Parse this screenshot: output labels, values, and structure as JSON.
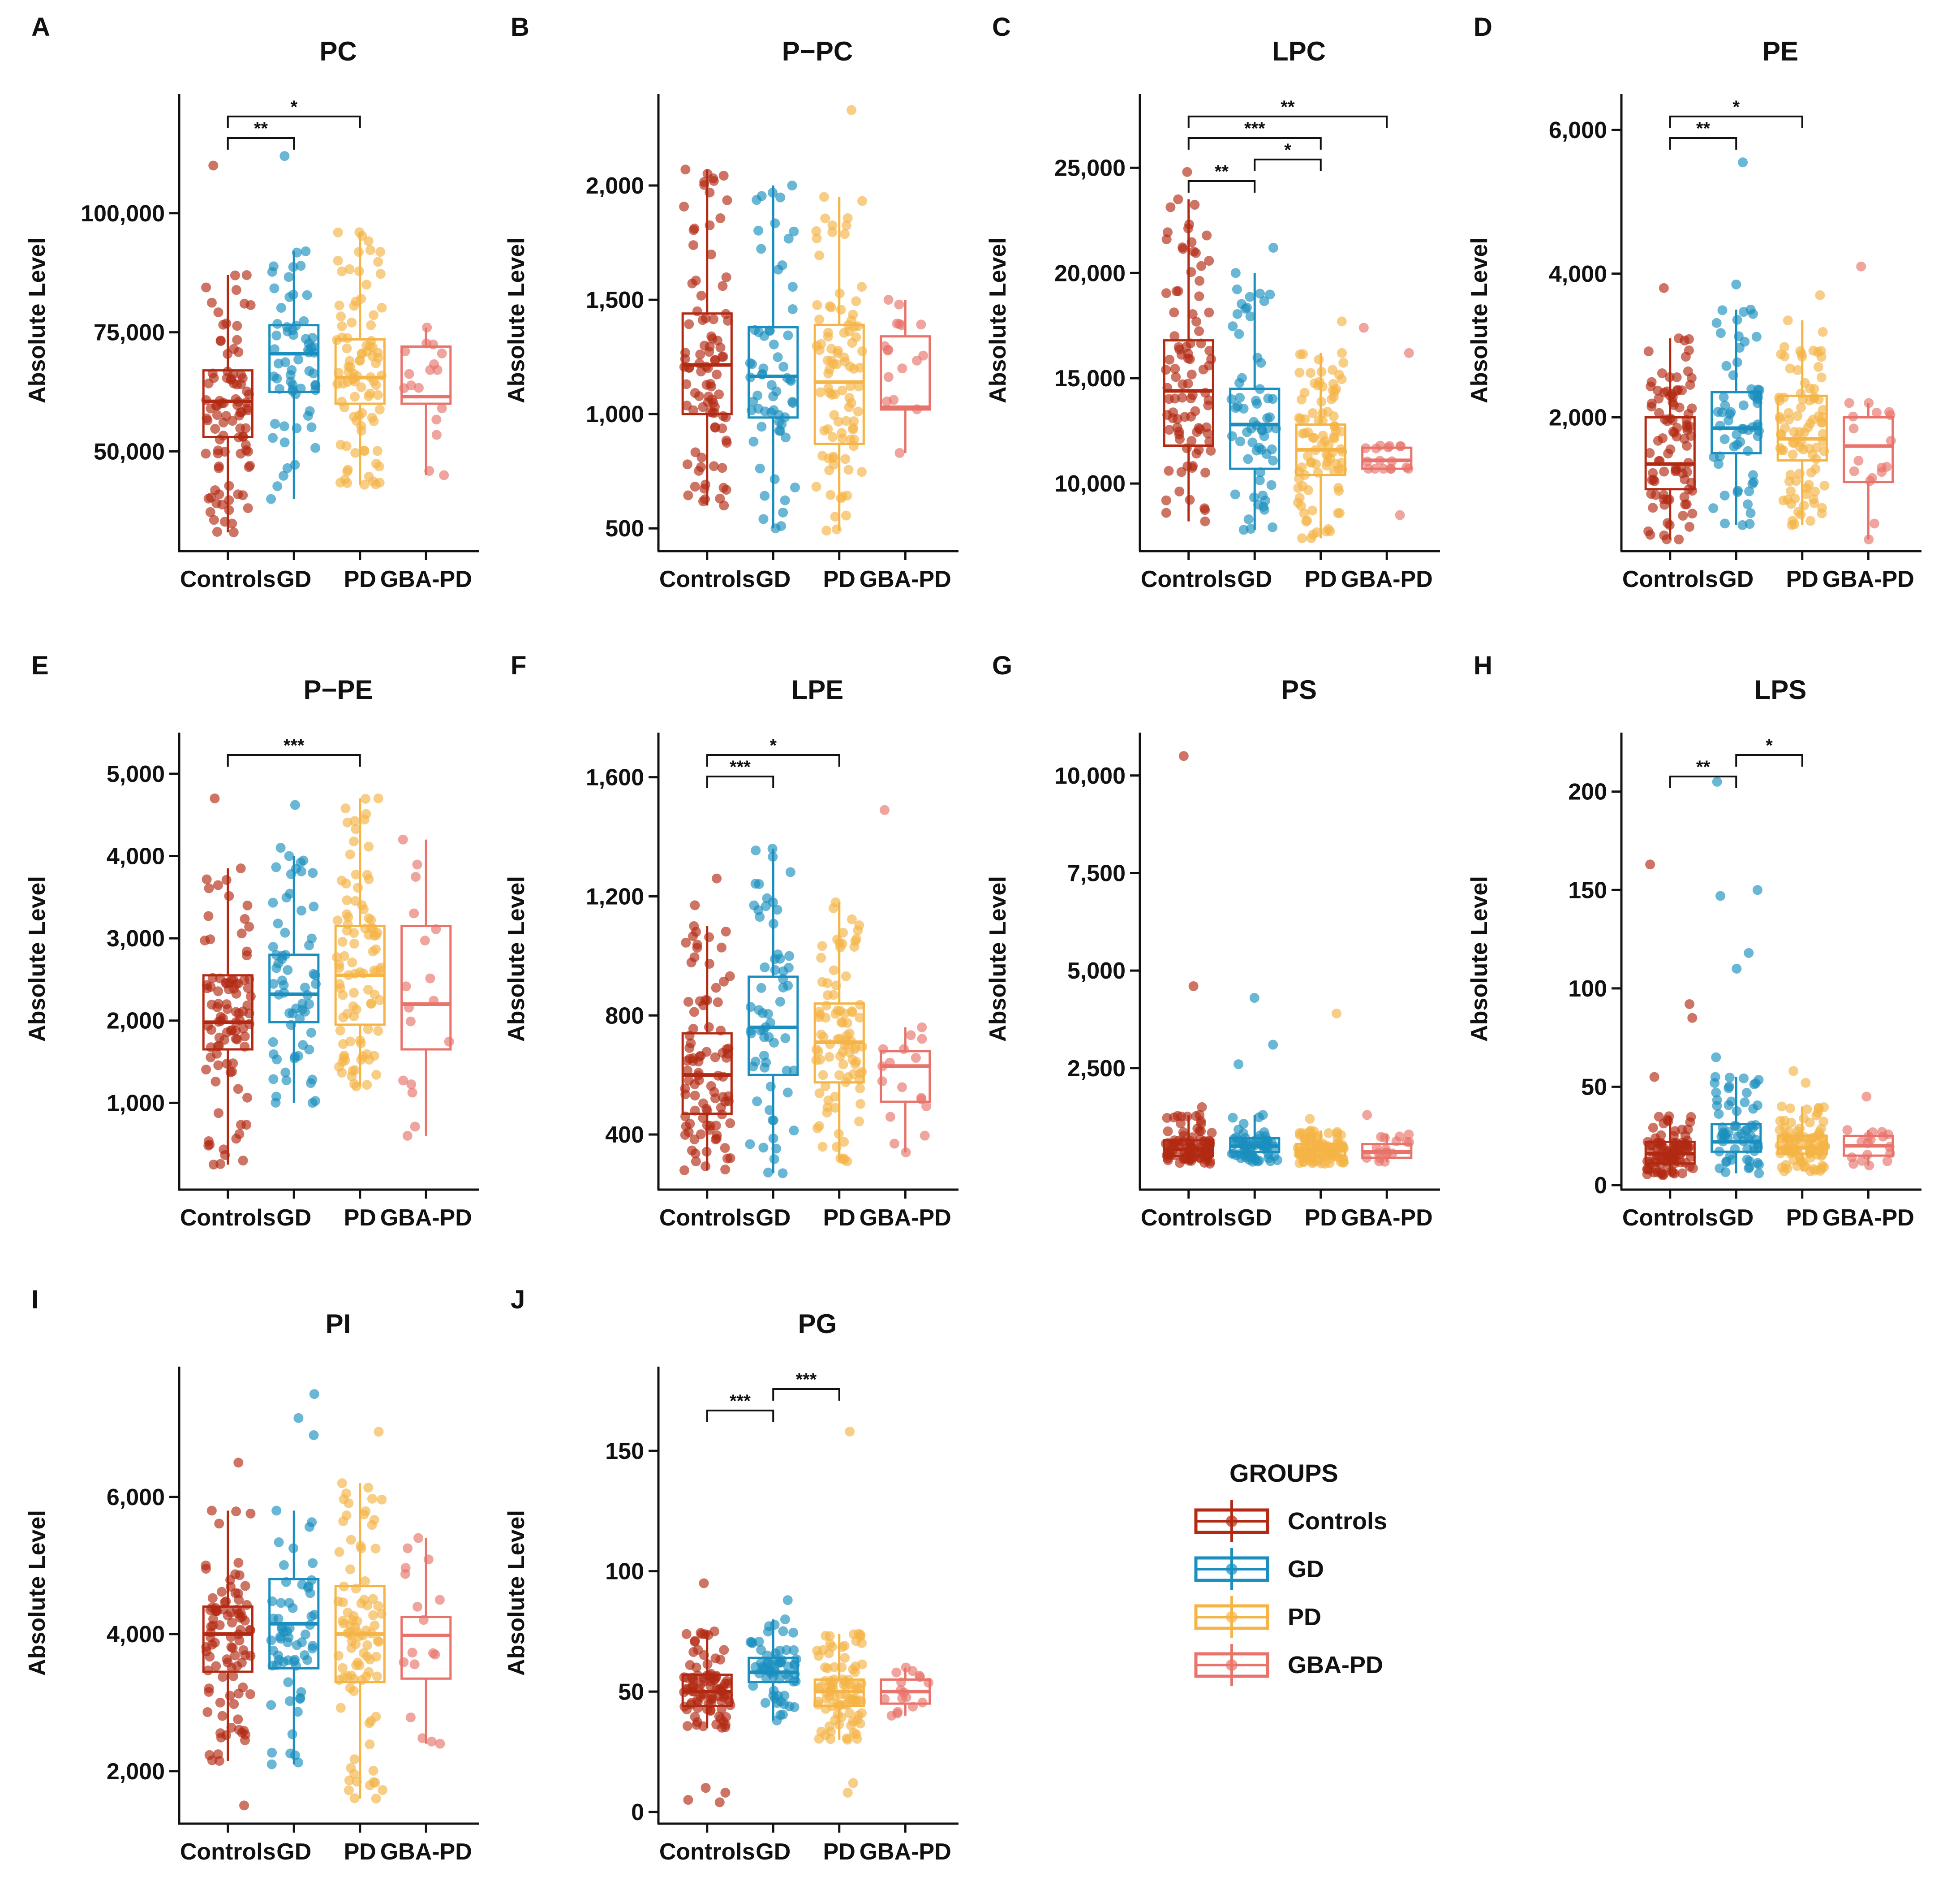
{
  "figure": {
    "legend": {
      "title": "GROUPS",
      "items": [
        {
          "label": "Controls",
          "color": "#b22a13"
        },
        {
          "label": "GD",
          "color": "#1a8fbf"
        },
        {
          "label": "PD",
          "color": "#f5b445"
        },
        {
          "label": "GBA-PD",
          "color": "#e8736a"
        }
      ]
    }
  },
  "chart_data": [
    {
      "panel": "A",
      "title": "PC",
      "type": "box",
      "ylabel": "Absolute Level",
      "categories": [
        "Controls",
        "GD",
        "PD",
        "GBA-PD"
      ],
      "ylim": [
        30000,
        125000
      ],
      "yticks": [
        50000,
        75000,
        100000
      ],
      "ytick_labels": [
        "50,000",
        "75,000",
        "100,000"
      ],
      "boxes": [
        {
          "min": 33000,
          "q1": 53000,
          "median": 60500,
          "q3": 67000,
          "max": 87000,
          "n": 90,
          "outliers": [
            110000
          ]
        },
        {
          "min": 40000,
          "q1": 62500,
          "median": 70500,
          "q3": 76500,
          "max": 92000,
          "n": 60,
          "outliers": [
            112000
          ]
        },
        {
          "min": 43000,
          "q1": 60000,
          "median": 65500,
          "q3": 73500,
          "max": 96000,
          "n": 90,
          "outliers": []
        },
        {
          "min": 45000,
          "q1": 60000,
          "median": 61500,
          "q3": 72000,
          "max": 76000,
          "n": 15,
          "outliers": []
        }
      ],
      "significance": [
        {
          "from": "Controls",
          "to": "GD",
          "label": "**"
        },
        {
          "from": "Controls",
          "to": "PD",
          "label": "*"
        }
      ]
    },
    {
      "panel": "B",
      "title": "P−PC",
      "type": "box",
      "ylabel": "Absolute Level",
      "categories": [
        "Controls",
        "GD",
        "PD",
        "GBA-PD"
      ],
      "ylim": [
        420,
        2400
      ],
      "yticks": [
        500,
        1000,
        1500,
        2000
      ],
      "ytick_labels": [
        "500",
        "1,000",
        "1,500",
        "2,000"
      ],
      "boxes": [
        {
          "min": 600,
          "q1": 1000,
          "median": 1215,
          "q3": 1440,
          "max": 2070,
          "n": 90,
          "outliers": []
        },
        {
          "min": 500,
          "q1": 985,
          "median": 1165,
          "q3": 1380,
          "max": 2000,
          "n": 60,
          "outliers": []
        },
        {
          "min": 490,
          "q1": 870,
          "median": 1140,
          "q3": 1390,
          "max": 1950,
          "n": 90,
          "outliers": [
            2330
          ]
        },
        {
          "min": 830,
          "q1": 1020,
          "median": 1030,
          "q3": 1340,
          "max": 1500,
          "n": 15,
          "outliers": []
        }
      ],
      "significance": []
    },
    {
      "panel": "C",
      "title": "LPC",
      "type": "box",
      "ylabel": "Absolute Level",
      "categories": [
        "Controls",
        "GD",
        "PD",
        "GBA-PD"
      ],
      "ylim": [
        7000,
        28500
      ],
      "yticks": [
        10000,
        15000,
        20000,
        25000
      ],
      "ytick_labels": [
        "10,000",
        "15,000",
        "20,000",
        "25,000"
      ],
      "boxes": [
        {
          "min": 8200,
          "q1": 11800,
          "median": 14400,
          "q3": 16800,
          "max": 23500,
          "n": 90,
          "outliers": [
            24800
          ]
        },
        {
          "min": 7800,
          "q1": 10700,
          "median": 12800,
          "q3": 14500,
          "max": 20000,
          "n": 60,
          "outliers": [
            21200
          ]
        },
        {
          "min": 7400,
          "q1": 10400,
          "median": 11600,
          "q3": 12800,
          "max": 16200,
          "n": 90,
          "outliers": [
            17700
          ]
        },
        {
          "min": 10700,
          "q1": 10700,
          "median": 11100,
          "q3": 11700,
          "max": 11800,
          "n": 15,
          "outliers": [
            8500,
            16200,
            17400
          ]
        }
      ],
      "significance": [
        {
          "from": "Controls",
          "to": "GD",
          "label": "**"
        },
        {
          "from": "GD",
          "to": "PD",
          "label": "*"
        },
        {
          "from": "Controls",
          "to": "PD",
          "label": "***"
        },
        {
          "from": "Controls",
          "to": "GBA-PD",
          "label": "**"
        }
      ]
    },
    {
      "panel": "D",
      "title": "PE",
      "type": "box",
      "ylabel": "Absolute Level",
      "categories": [
        "Controls",
        "GD",
        "PD",
        "GBA-PD"
      ],
      "ylim": [
        200,
        6500
      ],
      "yticks": [
        2000,
        4000,
        6000
      ],
      "ytick_labels": [
        "2,000",
        "4,000",
        "6,000"
      ],
      "boxes": [
        {
          "min": 300,
          "q1": 1000,
          "median": 1350,
          "q3": 2000,
          "max": 3100,
          "n": 90,
          "outliers": [
            3800
          ]
        },
        {
          "min": 500,
          "q1": 1500,
          "median": 1850,
          "q3": 2350,
          "max": 3500,
          "n": 60,
          "outliers": [
            3850,
            5550
          ]
        },
        {
          "min": 500,
          "q1": 1400,
          "median": 1700,
          "q3": 2300,
          "max": 3350,
          "n": 90,
          "outliers": [
            3700
          ]
        },
        {
          "min": 300,
          "q1": 1100,
          "median": 1600,
          "q3": 2000,
          "max": 2200,
          "n": 15,
          "outliers": [
            4100
          ]
        }
      ],
      "significance": [
        {
          "from": "Controls",
          "to": "GD",
          "label": "**"
        },
        {
          "from": "Controls",
          "to": "PD",
          "label": "*"
        }
      ]
    },
    {
      "panel": "E",
      "title": "P−PE",
      "type": "box",
      "ylabel": "Absolute Level",
      "categories": [
        "Controls",
        "GD",
        "PD",
        "GBA-PD"
      ],
      "ylim": [
        0,
        5500
      ],
      "yticks": [
        1000,
        2000,
        3000,
        4000,
        5000
      ],
      "ytick_labels": [
        "1,000",
        "2,000",
        "3,000",
        "4,000",
        "5,000"
      ],
      "boxes": [
        {
          "min": 250,
          "q1": 1650,
          "median": 1980,
          "q3": 2550,
          "max": 3850,
          "n": 90,
          "outliers": [
            4700
          ]
        },
        {
          "min": 1000,
          "q1": 1980,
          "median": 2320,
          "q3": 2800,
          "max": 4000,
          "n": 60,
          "outliers": [
            4100,
            4620
          ]
        },
        {
          "min": 1200,
          "q1": 1950,
          "median": 2550,
          "q3": 3150,
          "max": 4700,
          "n": 90,
          "outliers": []
        },
        {
          "min": 600,
          "q1": 1650,
          "median": 2200,
          "q3": 3150,
          "max": 4200,
          "n": 15,
          "outliers": []
        }
      ],
      "significance": [
        {
          "from": "Controls",
          "to": "PD",
          "label": "***"
        }
      ]
    },
    {
      "panel": "F",
      "title": "LPE",
      "type": "box",
      "ylabel": "Absolute Level",
      "categories": [
        "Controls",
        "GD",
        "PD",
        "GBA-PD"
      ],
      "ylim": [
        230,
        1750
      ],
      "yticks": [
        400,
        800,
        1200,
        1600
      ],
      "ytick_labels": [
        "400",
        "800",
        "1,200",
        "1,600"
      ],
      "boxes": [
        {
          "min": 280,
          "q1": 470,
          "median": 600,
          "q3": 740,
          "max": 1100,
          "n": 90,
          "outliers": [
            1170,
            1260
          ]
        },
        {
          "min": 270,
          "q1": 600,
          "median": 760,
          "q3": 930,
          "max": 1360,
          "n": 60,
          "outliers": []
        },
        {
          "min": 310,
          "q1": 575,
          "median": 710,
          "q3": 840,
          "max": 1180,
          "n": 90,
          "outliers": []
        },
        {
          "min": 340,
          "q1": 510,
          "median": 630,
          "q3": 680,
          "max": 760,
          "n": 15,
          "outliers": [
            1490
          ]
        }
      ],
      "significance": [
        {
          "from": "Controls",
          "to": "GD",
          "label": "***"
        },
        {
          "from": "Controls",
          "to": "PD",
          "label": "*"
        }
      ]
    },
    {
      "panel": "G",
      "title": "PS",
      "type": "box",
      "ylabel": "Absolute Level",
      "categories": [
        "Controls",
        "GD",
        "PD",
        "GBA-PD"
      ],
      "ylim": [
        -500,
        11100
      ],
      "yticks": [
        2500,
        5000,
        7500,
        10000
      ],
      "ytick_labels": [
        "2,500",
        "5,000",
        "7,500",
        "10,000"
      ],
      "boxes": [
        {
          "min": 50,
          "q1": 250,
          "median": 420,
          "q3": 650,
          "max": 1300,
          "n": 90,
          "outliers": [
            1500,
            4600,
            10500
          ]
        },
        {
          "min": 100,
          "q1": 350,
          "median": 500,
          "q3": 700,
          "max": 1300,
          "n": 60,
          "outliers": [
            2600,
            3100,
            4300
          ]
        },
        {
          "min": 50,
          "q1": 250,
          "median": 400,
          "q3": 550,
          "max": 900,
          "n": 90,
          "outliers": [
            1200,
            3900
          ]
        },
        {
          "min": 100,
          "q1": 200,
          "median": 350,
          "q3": 550,
          "max": 800,
          "n": 15,
          "outliers": [
            1300
          ]
        }
      ],
      "significance": []
    },
    {
      "panel": "H",
      "title": "LPS",
      "type": "box",
      "ylabel": "Absolute Level",
      "categories": [
        "Controls",
        "GD",
        "PD",
        "GBA-PD"
      ],
      "ylim": [
        0,
        230
      ],
      "yticks": [
        0,
        50,
        100,
        150,
        200
      ],
      "ytick_labels": [
        "0",
        "50",
        "100",
        "150",
        "200"
      ],
      "boxes": [
        {
          "min": 5,
          "q1": 11,
          "median": 16,
          "q3": 22,
          "max": 35,
          "n": 90,
          "outliers": [
            55,
            85,
            92,
            163
          ]
        },
        {
          "min": 6,
          "q1": 17,
          "median": 22,
          "q3": 31,
          "max": 55,
          "n": 60,
          "outliers": [
            65,
            110,
            118,
            147,
            150,
            205
          ]
        },
        {
          "min": 7,
          "q1": 16,
          "median": 19,
          "q3": 25,
          "max": 40,
          "n": 90,
          "outliers": [
            52,
            58
          ]
        },
        {
          "min": 10,
          "q1": 15,
          "median": 20,
          "q3": 25,
          "max": 28,
          "n": 15,
          "outliers": [
            45
          ]
        }
      ],
      "significance": [
        {
          "from": "Controls",
          "to": "GD",
          "label": "**"
        },
        {
          "from": "GD",
          "to": "PD",
          "label": "*"
        }
      ]
    },
    {
      "panel": "I",
      "title": "PI",
      "type": "box",
      "ylabel": "Absolute Level",
      "categories": [
        "Controls",
        "GD",
        "PD",
        "GBA-PD"
      ],
      "ylim": [
        1300,
        7900
      ],
      "yticks": [
        2000,
        4000,
        6000
      ],
      "ytick_labels": [
        "2,000",
        "4,000",
        "6,000"
      ],
      "boxes": [
        {
          "min": 2150,
          "q1": 3450,
          "median": 4000,
          "q3": 4400,
          "max": 5800,
          "n": 90,
          "outliers": [
            1500,
            6500
          ]
        },
        {
          "min": 2100,
          "q1": 3500,
          "median": 4150,
          "q3": 4800,
          "max": 5800,
          "n": 60,
          "outliers": [
            6900,
            7150,
            7500
          ]
        },
        {
          "min": 1600,
          "q1": 3300,
          "median": 4000,
          "q3": 4700,
          "max": 6200,
          "n": 90,
          "outliers": [
            6950
          ]
        },
        {
          "min": 2400,
          "q1": 3350,
          "median": 3980,
          "q3": 4250,
          "max": 5400,
          "n": 15,
          "outliers": []
        }
      ],
      "significance": []
    },
    {
      "panel": "J",
      "title": "PG",
      "type": "box",
      "ylabel": "Absolute Level",
      "categories": [
        "Controls",
        "GD",
        "PD",
        "GBA-PD"
      ],
      "ylim": [
        -3,
        185
      ],
      "yticks": [
        0,
        50,
        100,
        150
      ],
      "ytick_labels": [
        "0",
        "50",
        "100",
        "150"
      ],
      "boxes": [
        {
          "min": 35,
          "q1": 44,
          "median": 50,
          "q3": 57,
          "max": 75,
          "n": 90,
          "outliers": [
            4,
            5,
            8,
            10,
            95
          ]
        },
        {
          "min": 38,
          "q1": 54,
          "median": 58,
          "q3": 64,
          "max": 80,
          "n": 60,
          "outliers": [
            88
          ]
        },
        {
          "min": 30,
          "q1": 44,
          "median": 50,
          "q3": 55,
          "max": 74,
          "n": 90,
          "outliers": [
            8,
            12,
            158
          ]
        },
        {
          "min": 40,
          "q1": 45,
          "median": 50,
          "q3": 55,
          "max": 60,
          "n": 15,
          "outliers": []
        }
      ],
      "significance": [
        {
          "from": "Controls",
          "to": "GD",
          "label": "***"
        },
        {
          "from": "GD",
          "to": "PD",
          "label": "***"
        }
      ]
    }
  ]
}
